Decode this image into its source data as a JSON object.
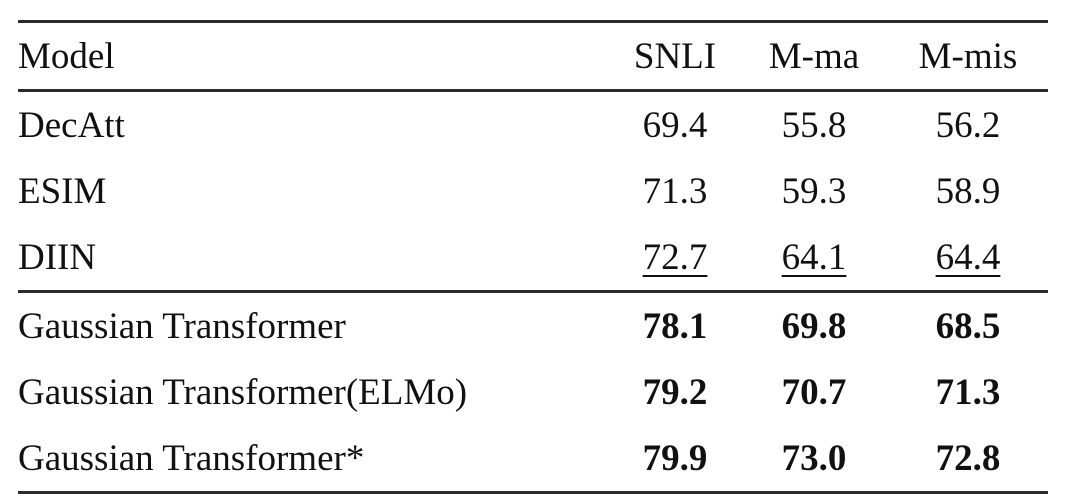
{
  "table": {
    "columns": [
      {
        "label": "Model"
      },
      {
        "label": "SNLI"
      },
      {
        "label": "M-ma"
      },
      {
        "label": "M-mis"
      }
    ],
    "rows": [
      {
        "model": "DecAtt",
        "snli": "69.4",
        "m_ma": "55.8",
        "m_mis": "56.2",
        "emphasis": "none"
      },
      {
        "model": "ESIM",
        "snli": "71.3",
        "m_ma": "59.3",
        "m_mis": "58.9",
        "emphasis": "none"
      },
      {
        "model": "DIIN",
        "snli": "72.7",
        "m_ma": "64.1",
        "m_mis": "64.4",
        "emphasis": "underline"
      },
      {
        "model": "Gaussian Transformer",
        "snli": "78.1",
        "m_ma": "69.8",
        "m_mis": "68.5",
        "emphasis": "bold"
      },
      {
        "model": "Gaussian Transformer(ELMo)",
        "snli": "79.2",
        "m_ma": "70.7",
        "m_mis": "71.3",
        "emphasis": "bold"
      },
      {
        "model": "Gaussian Transformer*",
        "snli": "79.9",
        "m_ma": "73.0",
        "m_mis": "72.8",
        "emphasis": "bold"
      }
    ],
    "colors": {
      "rule": "#2b2b2b",
      "text": "#111111",
      "background": "#ffffff"
    }
  }
}
